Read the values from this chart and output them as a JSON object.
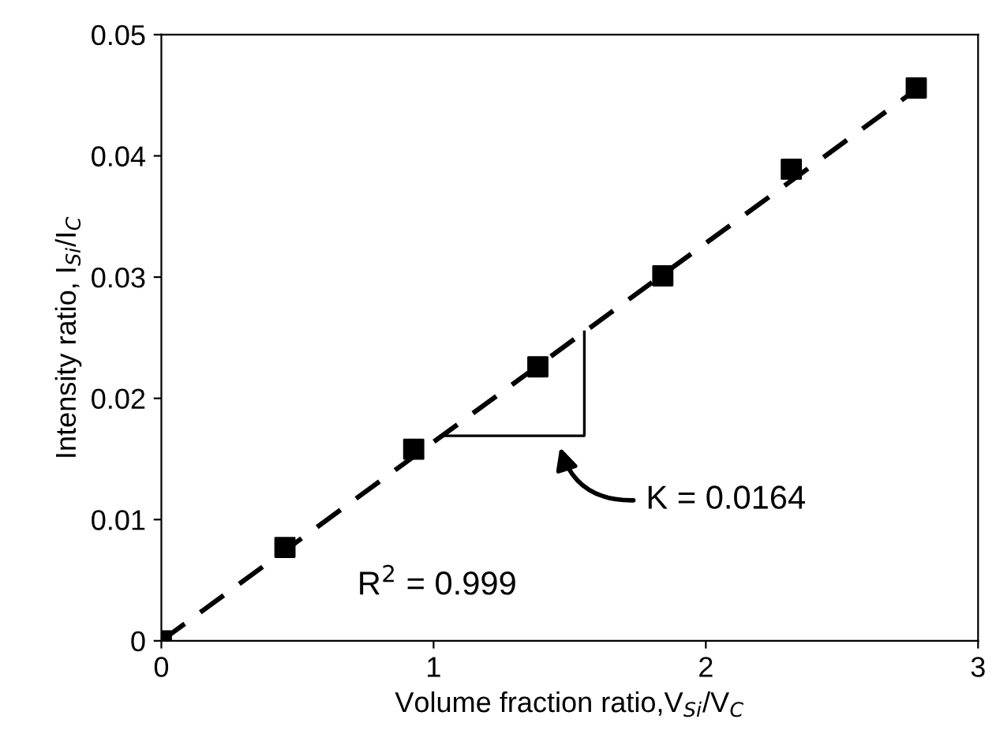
{
  "chart_data": {
    "type": "scatter",
    "xlabel": "Volume fraction ratio,V$_{Si}$/V$_{C}$",
    "ylabel": "Intensity ratio, I$_{Si}$/I$_{C}$",
    "xlim": [
      0,
      3
    ],
    "xticks": [
      0,
      1,
      2,
      3
    ],
    "ylim": [
      0,
      0.05
    ],
    "yticks": [
      0,
      0.01,
      0.02,
      0.03,
      0.04,
      0.05
    ],
    "grid": false,
    "legend": false,
    "series": [
      {
        "color": "#000000",
        "marker": "square",
        "x": [
          0,
          0.454,
          0.927,
          1.383,
          1.842,
          2.314,
          2.773
        ],
        "values": [
          0,
          0.0077,
          0.0158,
          0.0226,
          0.0301,
          0.0389,
          0.0456
        ]
      },
      {
        "type": "line",
        "color": "#000000",
        "marker": "none",
        "line_style": "dashed",
        "x": [
          0,
          2.75
        ],
        "values": [
          0,
          0.0451
        ]
      }
    ],
    "annotations": [
      "K = 0.0164",
      "R$^{2}$ = 0.999"
    ]
  }
}
